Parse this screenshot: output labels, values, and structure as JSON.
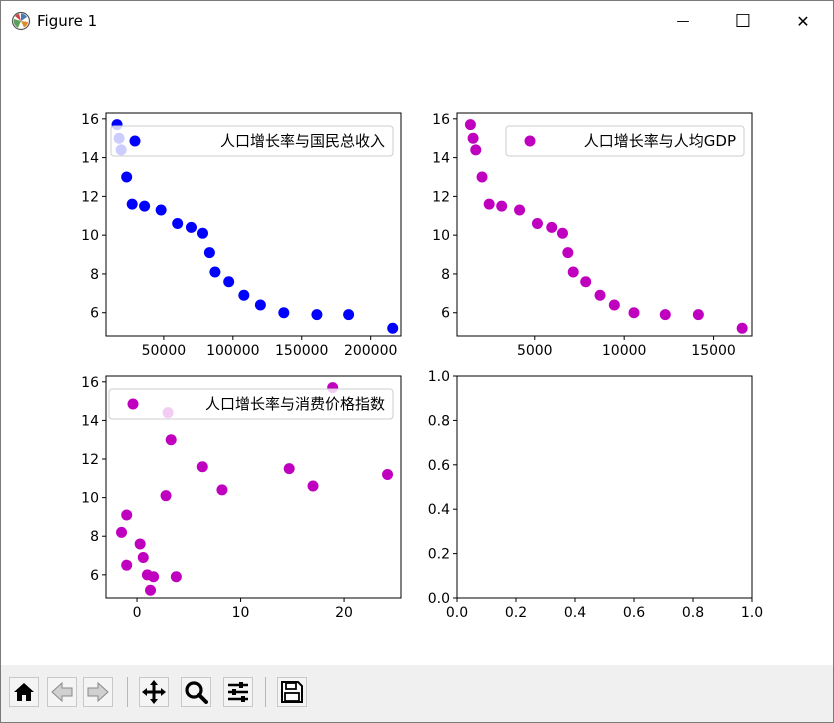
{
  "window": {
    "title": "Figure 1",
    "icons": {
      "app": "matplotlib-logo-icon",
      "minimize": "minimize-icon",
      "maximize": "maximize-icon",
      "close": "close-icon"
    },
    "minimize_glyph": "—",
    "maximize_glyph": "☐",
    "close_glyph": "✕"
  },
  "toolbar": {
    "buttons": [
      {
        "name": "home-button",
        "icon": "home-icon"
      },
      {
        "name": "back-button",
        "icon": "left-arrow-icon"
      },
      {
        "name": "forward-button",
        "icon": "right-arrow-icon"
      },
      {
        "name": "pan-button",
        "icon": "move-icon"
      },
      {
        "name": "zoom-button",
        "icon": "magnifier-icon"
      },
      {
        "name": "subplots-button",
        "icon": "sliders-icon"
      },
      {
        "name": "save-button",
        "icon": "floppy-disk-icon"
      }
    ]
  },
  "chart_data": [
    {
      "type": "scatter",
      "legend_location": "upper right",
      "xlim": [
        8000,
        222000
      ],
      "ylim": [
        4.8,
        16.3
      ],
      "xticks": [
        50000,
        100000,
        150000,
        200000
      ],
      "xtick_labels": [
        "50000",
        "100000",
        "150000",
        "200000"
      ],
      "yticks": [
        6,
        8,
        10,
        12,
        14,
        16
      ],
      "ytick_labels": [
        "6",
        "8",
        "10",
        "12",
        "14",
        "16"
      ],
      "series": [
        {
          "name": "人口增长率与国民总收入",
          "color": "#0000ff",
          "x": [
            16000,
            17500,
            19000,
            23000,
            27000,
            36000,
            48000,
            60000,
            70000,
            78000,
            83000,
            87000,
            97000,
            108000,
            120000,
            137000,
            161000,
            184000,
            216000
          ],
          "y": [
            15.7,
            15.0,
            14.4,
            13.0,
            11.6,
            11.5,
            11.3,
            10.6,
            10.4,
            10.1,
            9.1,
            8.1,
            7.6,
            6.9,
            6.4,
            6.0,
            5.9,
            5.9,
            5.2
          ]
        }
      ]
    },
    {
      "type": "scatter",
      "legend_location": "upper right",
      "xlim": [
        650,
        17150
      ],
      "ylim": [
        4.8,
        16.3
      ],
      "xticks": [
        5000,
        10000,
        15000
      ],
      "xtick_labels": [
        "5000",
        "10000",
        "15000"
      ],
      "yticks": [
        6,
        8,
        10,
        12,
        14,
        16
      ],
      "ytick_labels": [
        "6",
        "8",
        "10",
        "12",
        "14",
        "16"
      ],
      "series": [
        {
          "name": "人口增长率与人均GDP",
          "color": "#bf00bf",
          "x": [
            1400,
            1550,
            1700,
            2050,
            2450,
            3150,
            4150,
            5150,
            5950,
            6550,
            6850,
            7150,
            7850,
            8650,
            9450,
            10550,
            12300,
            14150,
            16600
          ],
          "y": [
            15.7,
            15.0,
            14.4,
            13.0,
            11.6,
            11.5,
            11.3,
            10.6,
            10.4,
            10.1,
            9.1,
            8.1,
            7.6,
            6.9,
            6.4,
            6.0,
            5.9,
            5.9,
            5.2
          ]
        }
      ]
    },
    {
      "type": "scatter",
      "legend_location": "upper right",
      "xlim": [
        -3,
        25.5
      ],
      "ylim": [
        4.8,
        16.3
      ],
      "xticks": [
        0,
        10,
        20
      ],
      "xtick_labels": [
        "0",
        "10",
        "20"
      ],
      "yticks": [
        6,
        8,
        10,
        12,
        14,
        16
      ],
      "ytick_labels": [
        "6",
        "8",
        "10",
        "12",
        "14",
        "16"
      ],
      "series": [
        {
          "name": "人口增长率与消费价格指数",
          "color": "#bf00bf",
          "x": [
            -1.5,
            -1.0,
            -1.0,
            0.3,
            0.6,
            1.0,
            1.3,
            1.6,
            2.8,
            3.0,
            3.3,
            3.8,
            6.3,
            8.2,
            14.7,
            17.0,
            18.9,
            24.2
          ],
          "y": [
            8.2,
            9.1,
            6.5,
            7.6,
            6.9,
            6.0,
            5.2,
            5.9,
            10.1,
            14.4,
            13.0,
            5.9,
            11.6,
            10.4,
            11.5,
            10.6,
            15.7,
            11.2
          ]
        }
      ]
    },
    {
      "type": "scatter",
      "xlim": [
        0,
        1
      ],
      "ylim": [
        0,
        1
      ],
      "xticks": [
        0,
        0.2,
        0.4,
        0.6,
        0.8,
        1.0
      ],
      "xtick_labels": [
        "0.0",
        "0.2",
        "0.4",
        "0.6",
        "0.8",
        "1.0"
      ],
      "yticks": [
        0,
        0.2,
        0.4,
        0.6,
        0.8,
        1.0
      ],
      "ytick_labels": [
        "0.0",
        "0.2",
        "0.4",
        "0.6",
        "0.8",
        "1.0"
      ],
      "series": []
    }
  ]
}
